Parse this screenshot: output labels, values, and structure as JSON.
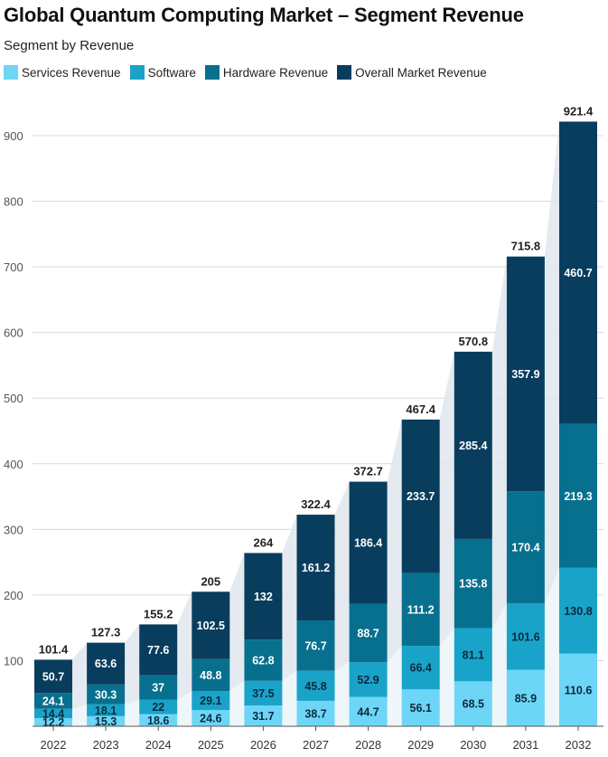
{
  "title": "Global Quantum Computing Market – Segment Revenue",
  "subtitle": "Segment by Revenue",
  "chart_data": {
    "type": "bar",
    "stacked": true,
    "categories": [
      "2022",
      "2023",
      "2024",
      "2025",
      "2026",
      "2027",
      "2028",
      "2029",
      "2030",
      "2031",
      "2032"
    ],
    "series": [
      {
        "name": "Services Revenue",
        "color": "#6dd6f7",
        "values": [
          12.2,
          15.3,
          18.6,
          24.6,
          31.7,
          38.7,
          44.7,
          56.1,
          68.5,
          85.9,
          110.6
        ]
      },
      {
        "name": "Software",
        "color": "#1aa3c9",
        "values": [
          14.4,
          18.1,
          22,
          29.1,
          37.5,
          45.8,
          52.9,
          66.4,
          81.1,
          101.6,
          130.8
        ]
      },
      {
        "name": "Hardware Revenue",
        "color": "#08708f",
        "values": [
          24.1,
          30.3,
          37,
          48.8,
          62.8,
          76.7,
          88.7,
          111.2,
          135.8,
          170.4,
          219.3
        ]
      },
      {
        "name": "Overall Market Revenue",
        "color": "#083d5e",
        "values": [
          50.7,
          63.6,
          77.6,
          102.5,
          132,
          161.2,
          186.4,
          233.7,
          285.4,
          357.9,
          460.7
        ]
      }
    ],
    "totals": [
      "101.4",
      "127.3",
      "155.2",
      "205",
      "264",
      "322.4",
      "372.7",
      "467.4",
      "570.8",
      "715.8",
      "921.4"
    ],
    "yticks": [
      100,
      200,
      300,
      400,
      500,
      600,
      700,
      800,
      900
    ],
    "ylim": [
      0,
      925
    ],
    "grid": true,
    "legend": "top-left"
  }
}
